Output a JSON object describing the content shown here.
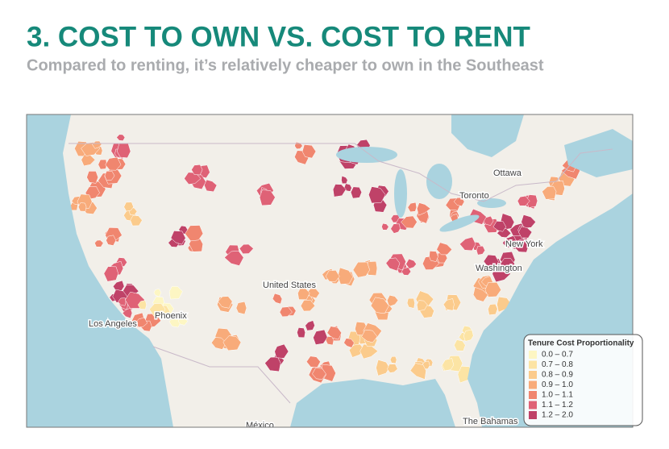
{
  "header": {
    "title": "3. COST TO OWN VS. COST TO RENT",
    "subtitle": "Compared to renting, it’s relatively cheaper to own in the Southeast"
  },
  "map": {
    "labels": [
      "Ottawa",
      "Toronto",
      "New York",
      "Washington",
      "United States",
      "Phoenix",
      "Los Angeles",
      "The Bahamas",
      "México"
    ],
    "legend": {
      "title": "Tenure Cost Proportionality",
      "items": [
        {
          "label": "0.0 – 0.7",
          "color": "#fdf6c3"
        },
        {
          "label": "0.7 – 0.8",
          "color": "#fce4a4"
        },
        {
          "label": "0.8 – 0.9",
          "color": "#fbcb8c"
        },
        {
          "label": "0.9 – 1.0",
          "color": "#f8ab7a"
        },
        {
          "label": "1.0 – 1.1",
          "color": "#f0866f"
        },
        {
          "label": "1.1 – 1.2",
          "color": "#df6276"
        },
        {
          "label": "1.2 – 2.0",
          "color": "#bf4268"
        }
      ]
    }
  }
}
